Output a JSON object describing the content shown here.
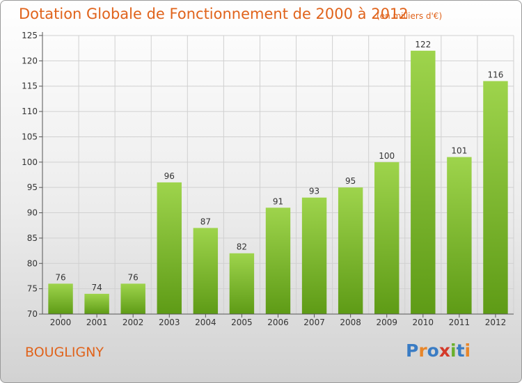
{
  "chart_data": {
    "type": "bar",
    "title": "Dotation Globale de Fonctionnement de 2000 à 2012",
    "subtitle": "(en milliers d'€)",
    "categories": [
      "2000",
      "2001",
      "2002",
      "2003",
      "2004",
      "2005",
      "2006",
      "2007",
      "2008",
      "2009",
      "2010",
      "2011",
      "2012"
    ],
    "values": [
      76,
      74,
      76,
      96,
      87,
      82,
      91,
      93,
      95,
      100,
      122,
      101,
      116
    ],
    "ylim": [
      70,
      125
    ],
    "yticks": [
      70,
      75,
      80,
      85,
      90,
      95,
      100,
      105,
      110,
      115,
      120,
      125
    ],
    "xlabel": "",
    "ylabel": "",
    "grid": true,
    "bar_color_top": "#9ed44c",
    "bar_color_bottom": "#5e9b16"
  },
  "commune": "BOUGLIGNY",
  "logo": {
    "text": "Proxiti",
    "letters": [
      {
        "ch": "P",
        "color": "#3a7cc4"
      },
      {
        "ch": "r",
        "color": "#e8862a"
      },
      {
        "ch": "o",
        "color": "#3a7cc4"
      },
      {
        "ch": "x",
        "color": "#d43a2a"
      },
      {
        "ch": "i",
        "color": "#6ab02c"
      },
      {
        "ch": "t",
        "color": "#3a7cc4"
      },
      {
        "ch": "i",
        "color": "#e8862a"
      }
    ]
  },
  "colors": {
    "accent": "#e0631b",
    "text": "#333333",
    "grid": "#d0d0d0"
  }
}
